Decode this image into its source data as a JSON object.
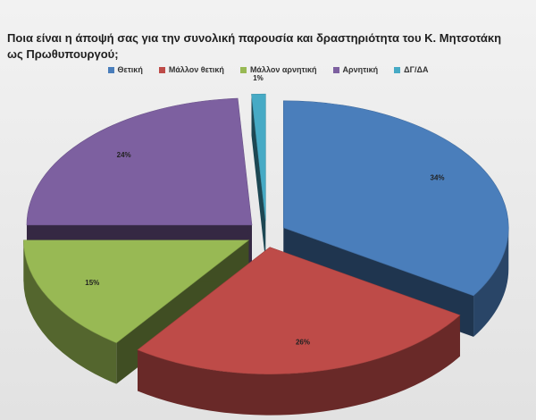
{
  "title": "Ποια είναι η άποψή σας για την συνολική παρουσία και δραστηριότητα του Κ. Μητσοτάκη ως Πρωθυπουργού;",
  "chart_data": {
    "type": "pie",
    "title": "Ποια είναι η άποψή σας για την συνολική παρουσία και δραστηριότητα του Κ. Μητσοτάκη ως Πρωθυπουργού;",
    "categories": [
      "Θετική",
      "Μάλλον θετική",
      "Μάλλον αρνητική",
      "Αρνητική",
      "ΔΓ/ΔΑ"
    ],
    "values": [
      34,
      26,
      15,
      24,
      1
    ],
    "labels": [
      "34%",
      "26%",
      "15%",
      "24%",
      "1%"
    ],
    "colors": [
      "#4a7ebb",
      "#be4b48",
      "#98b954",
      "#7d60a0",
      "#46aac5"
    ],
    "legend_position": "top",
    "style": "3d-exploded"
  }
}
